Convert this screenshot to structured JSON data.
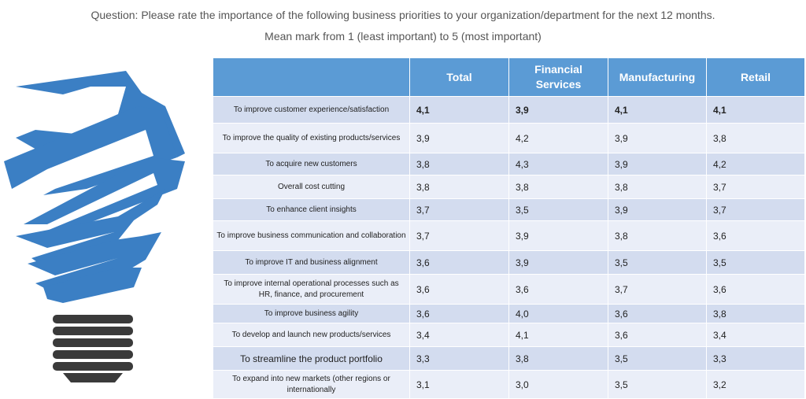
{
  "title": "Question: Please rate the importance of the following business priorities to your organization/department for the next 12 months.",
  "subtitle": "Mean mark from 1 (least important) to 5 (most important)",
  "colors": {
    "header": "#5b9bd5",
    "row_dark": "#d3dcef",
    "row_light": "#eaeef8",
    "bulb": "#3b7fc4",
    "base": "#3a3a3a"
  },
  "icon": "lightbulb-icon",
  "chart_data": {
    "type": "table",
    "columns": [
      "Total",
      "Financial Services",
      "Manufacturing",
      "Retail"
    ],
    "column_labels": [
      "Total",
      "Financial\nServices",
      "Manufacturing",
      "Retail"
    ],
    "rows": [
      {
        "label": "To improve customer experience/satisfaction",
        "values": [
          "4,1",
          "3,9",
          "4,1",
          "4,1"
        ]
      },
      {
        "label": "To improve the quality of existing products/services",
        "values": [
          "3,9",
          "4,2",
          "3,9",
          "3,8"
        ]
      },
      {
        "label": "To acquire new customers",
        "values": [
          "3,8",
          "4,3",
          "3,9",
          "4,2"
        ]
      },
      {
        "label": "Overall cost cutting",
        "values": [
          "3,8",
          "3,8",
          "3,8",
          "3,7"
        ]
      },
      {
        "label": "To enhance client insights",
        "values": [
          "3,7",
          "3,5",
          "3,9",
          "3,7"
        ]
      },
      {
        "label": "To improve business communication and collaboration",
        "values": [
          "3,7",
          "3,9",
          "3,8",
          "3,6"
        ]
      },
      {
        "label": "To improve IT and business alignment",
        "values": [
          "3,6",
          "3,9",
          "3,5",
          "3,5"
        ]
      },
      {
        "label": "To improve internal operational processes such as HR, finance, and procurement",
        "values": [
          "3,6",
          "3,6",
          "3,7",
          "3,6"
        ]
      },
      {
        "label": "To improve business agility",
        "values": [
          "3,6",
          "4,0",
          "3,6",
          "3,8"
        ]
      },
      {
        "label": "To develop and launch new products/services",
        "values": [
          "3,4",
          "4,1",
          "3,6",
          "3,4"
        ]
      },
      {
        "label": "To streamline the product portfolio",
        "values": [
          "3,3",
          "3,8",
          "3,5",
          "3,3"
        ]
      },
      {
        "label": "To expand into new markets (other regions or internationally",
        "values": [
          "3,1",
          "3,0",
          "3,5",
          "3,2"
        ]
      }
    ]
  }
}
